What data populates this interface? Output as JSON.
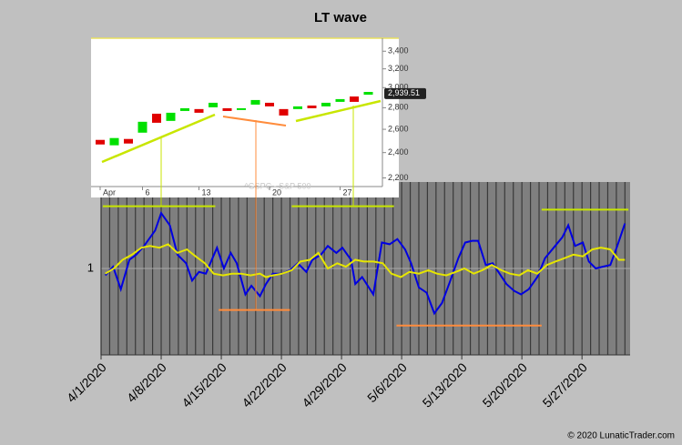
{
  "chart_data": [
    {
      "type": "line",
      "title": "LT wave",
      "source": "© 2020 LunaticTrader.com",
      "xlim": [
        0,
        61.6
      ],
      "ylim": [
        0.5,
        1.5
      ],
      "yticks": [
        1
      ],
      "xticks": [
        {
          "value": 0,
          "label": "4/1/2020"
        },
        {
          "value": 7,
          "label": "4/8/2020"
        },
        {
          "value": 14,
          "label": "4/15/2020"
        },
        {
          "value": 21,
          "label": "4/22/2020"
        },
        {
          "value": 28,
          "label": "4/29/2020"
        },
        {
          "value": 35,
          "label": "5/6/2020"
        },
        {
          "value": 42,
          "label": "5/13/2020"
        },
        {
          "value": 49,
          "label": "5/20/2020"
        },
        {
          "value": 56,
          "label": "5/27/2020"
        }
      ],
      "xminorticks": [
        0,
        1,
        2,
        3,
        4,
        5,
        6,
        7,
        8,
        9,
        10,
        11,
        12,
        13,
        14,
        15,
        16,
        17,
        18,
        19,
        20,
        21,
        22,
        23,
        24,
        25,
        26,
        27,
        28,
        29,
        30,
        31,
        32,
        33,
        34,
        35,
        36,
        37,
        38,
        39,
        40,
        41,
        42,
        43,
        44,
        45,
        46,
        47,
        48,
        49,
        50,
        51,
        52,
        53,
        54,
        55,
        56,
        57,
        58,
        59,
        60,
        61
      ],
      "series": [
        {
          "color": "#0000e0",
          "x": [
            0.5,
            1.4,
            2.3,
            3.3,
            4.1,
            5.0,
            6.3,
            7.0,
            8.0,
            8.9,
            9.9,
            10.6,
            11.4,
            12.2,
            13.5,
            14.3,
            15.1,
            15.8,
            16.8,
            17.5,
            18.5,
            19.2,
            20.0,
            21.1,
            22.0,
            22.9,
            23.9,
            24.6,
            25.6,
            26.4,
            27.4,
            28.1,
            29.1,
            29.6,
            30.4,
            31.7,
            32.7,
            33.6,
            34.5,
            35.4,
            36.1,
            37.0,
            37.9,
            38.8,
            39.7,
            40.6,
            41.6,
            42.4,
            43.2,
            43.9,
            44.8,
            45.6,
            46.4,
            47.2,
            48.1,
            48.9,
            49.8,
            50.8,
            51.7,
            52.7,
            53.7,
            54.4,
            55.2,
            56.1,
            56.8,
            57.6,
            58.4,
            59.3,
            60.1,
            61.0
          ],
          "values": [
            0.96,
            1.01,
            0.88,
            1.05,
            1.08,
            1.13,
            1.22,
            1.32,
            1.25,
            1.08,
            1.03,
            0.93,
            0.98,
            0.97,
            1.12,
            1.0,
            1.09,
            1.03,
            0.85,
            0.9,
            0.84,
            0.91,
            0.97,
            0.97,
            0.99,
            1.03,
            0.98,
            1.05,
            1.08,
            1.13,
            1.09,
            1.12,
            1.05,
            0.91,
            0.95,
            0.85,
            1.15,
            1.14,
            1.17,
            1.11,
            1.03,
            0.89,
            0.86,
            0.74,
            0.8,
            0.92,
            1.06,
            1.15,
            1.16,
            1.16,
            1.02,
            1.03,
            0.97,
            0.91,
            0.87,
            0.85,
            0.88,
            0.95,
            1.06,
            1.12,
            1.18,
            1.25,
            1.13,
            1.15,
            1.04,
            1.0,
            1.01,
            1.02,
            1.13,
            1.26
          ]
        },
        {
          "color": "#e6e600",
          "x": [
            0.5,
            1.5,
            2.5,
            3.6,
            4.7,
            5.7,
            6.8,
            7.8,
            8.9,
            10.0,
            11.0,
            12.1,
            13.1,
            14.2,
            15.3,
            16.3,
            17.4,
            18.5,
            19.2,
            20.0,
            21.1,
            22.2,
            23.2,
            24.3,
            25.3,
            26.4,
            27.5,
            28.5,
            29.6,
            30.6,
            31.7,
            32.8,
            33.8,
            34.9,
            35.9,
            37.0,
            38.1,
            39.1,
            40.2,
            41.3,
            42.3,
            43.4,
            44.4,
            45.5,
            46.6,
            47.6,
            48.7,
            49.7,
            50.8,
            51.9,
            52.9,
            54.0,
            55.0,
            56.1,
            57.2,
            58.2,
            59.3,
            60.3,
            61.0
          ],
          "values": [
            0.97,
            1.0,
            1.05,
            1.08,
            1.12,
            1.13,
            1.12,
            1.14,
            1.09,
            1.11,
            1.07,
            1.03,
            0.97,
            0.96,
            0.97,
            0.97,
            0.96,
            0.97,
            0.95,
            0.96,
            0.97,
            0.99,
            1.04,
            1.05,
            1.09,
            1.0,
            1.03,
            1.01,
            1.05,
            1.04,
            1.04,
            1.03,
            0.97,
            0.95,
            0.98,
            0.97,
            0.99,
            0.97,
            0.96,
            0.98,
            1.0,
            0.97,
            0.99,
            1.02,
            0.99,
            0.97,
            0.96,
            0.99,
            0.97,
            1.02,
            1.04,
            1.06,
            1.08,
            1.07,
            1.11,
            1.12,
            1.11,
            1.05,
            1.05
          ]
        }
      ],
      "levels": [
        {
          "x": [
            0.2,
            13.3
          ],
          "value": 1.36,
          "color": "#c8e600"
        },
        {
          "x": [
            22.2,
            34.1
          ],
          "value": 1.36,
          "color": "#c8e600"
        },
        {
          "x": [
            51.3,
            61.4
          ],
          "value": 1.34,
          "color": "#c8e600"
        },
        {
          "x": [
            13.7,
            22.0
          ],
          "value": 0.76,
          "color": "#ff8c3c"
        },
        {
          "x": [
            34.4,
            51.3
          ],
          "value": 0.67,
          "color": "#ff8c3c"
        }
      ]
    },
    {
      "type": "candlestick",
      "watermark": "^GSPC - S&P 500",
      "log_scale": true,
      "categories": [
        "Apr",
        null,
        null,
        "6",
        null,
        null,
        null,
        "13",
        null,
        null,
        null,
        null,
        "20",
        null,
        null,
        null,
        null,
        "27",
        null,
        null
      ],
      "open": [
        2507,
        2461,
        2515,
        2570,
        2743,
        2676,
        2769,
        2787,
        2804,
        2795,
        2778,
        2830,
        2848,
        2787,
        2787,
        2821,
        2813,
        2857,
        2910,
        2928
      ],
      "close": [
        2468,
        2523,
        2476,
        2668,
        2659,
        2752,
        2795,
        2752,
        2848,
        2769,
        2795,
        2875,
        2813,
        2726,
        2813,
        2795,
        2848,
        2884,
        2857,
        2956
      ],
      "up_color": "#00e000",
      "down_color": "#e00000",
      "ylim": [
        2070,
        3555
      ],
      "yticks": [
        {
          "value": 2200,
          "label": "2,200"
        },
        {
          "value": 2400,
          "label": "2,400"
        },
        {
          "value": 2600,
          "label": "2,600"
        },
        {
          "value": 2800,
          "label": "2,800"
        },
        {
          "value": 3000,
          "label": "3,000"
        },
        {
          "value": 3200,
          "label": "3,200"
        },
        {
          "value": 3400,
          "label": "3,400"
        }
      ],
      "last_price": {
        "value": 2939.51,
        "label": "2,939.51"
      }
    }
  ]
}
